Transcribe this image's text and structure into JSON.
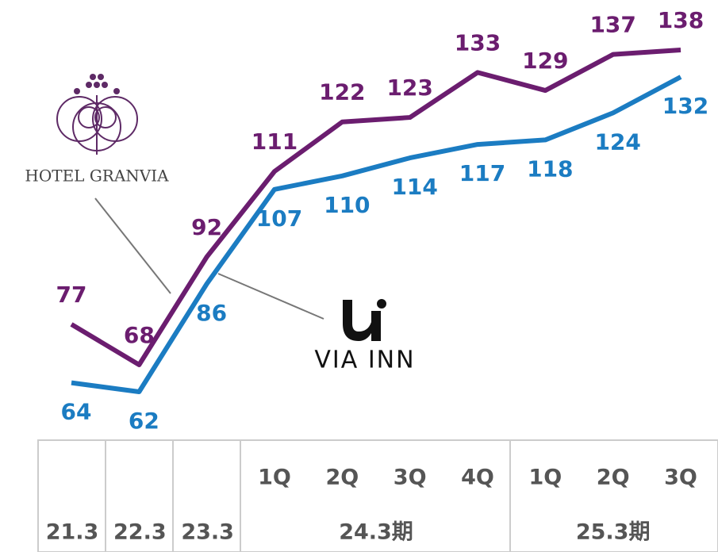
{
  "chart_data": {
    "type": "line",
    "categories": [
      "21.3",
      "22.3",
      "23.3",
      "1Q",
      "2Q",
      "3Q",
      "4Q",
      "1Q",
      "2Q",
      "3Q"
    ],
    "groups": [
      {
        "label": "24.3期",
        "count": 4
      },
      {
        "label": "25.3期",
        "count": 3
      }
    ],
    "series": [
      {
        "name": "HOTEL GRANVIA",
        "color": "#6b1d6f",
        "values": [
          77,
          68,
          92,
          111,
          122,
          123,
          133,
          129,
          137,
          138
        ]
      },
      {
        "name": "VIA INN",
        "color": "#1b7cc2",
        "values": [
          64,
          62,
          86,
          107,
          110,
          114,
          117,
          118,
          124,
          132
        ]
      }
    ]
  }
}
